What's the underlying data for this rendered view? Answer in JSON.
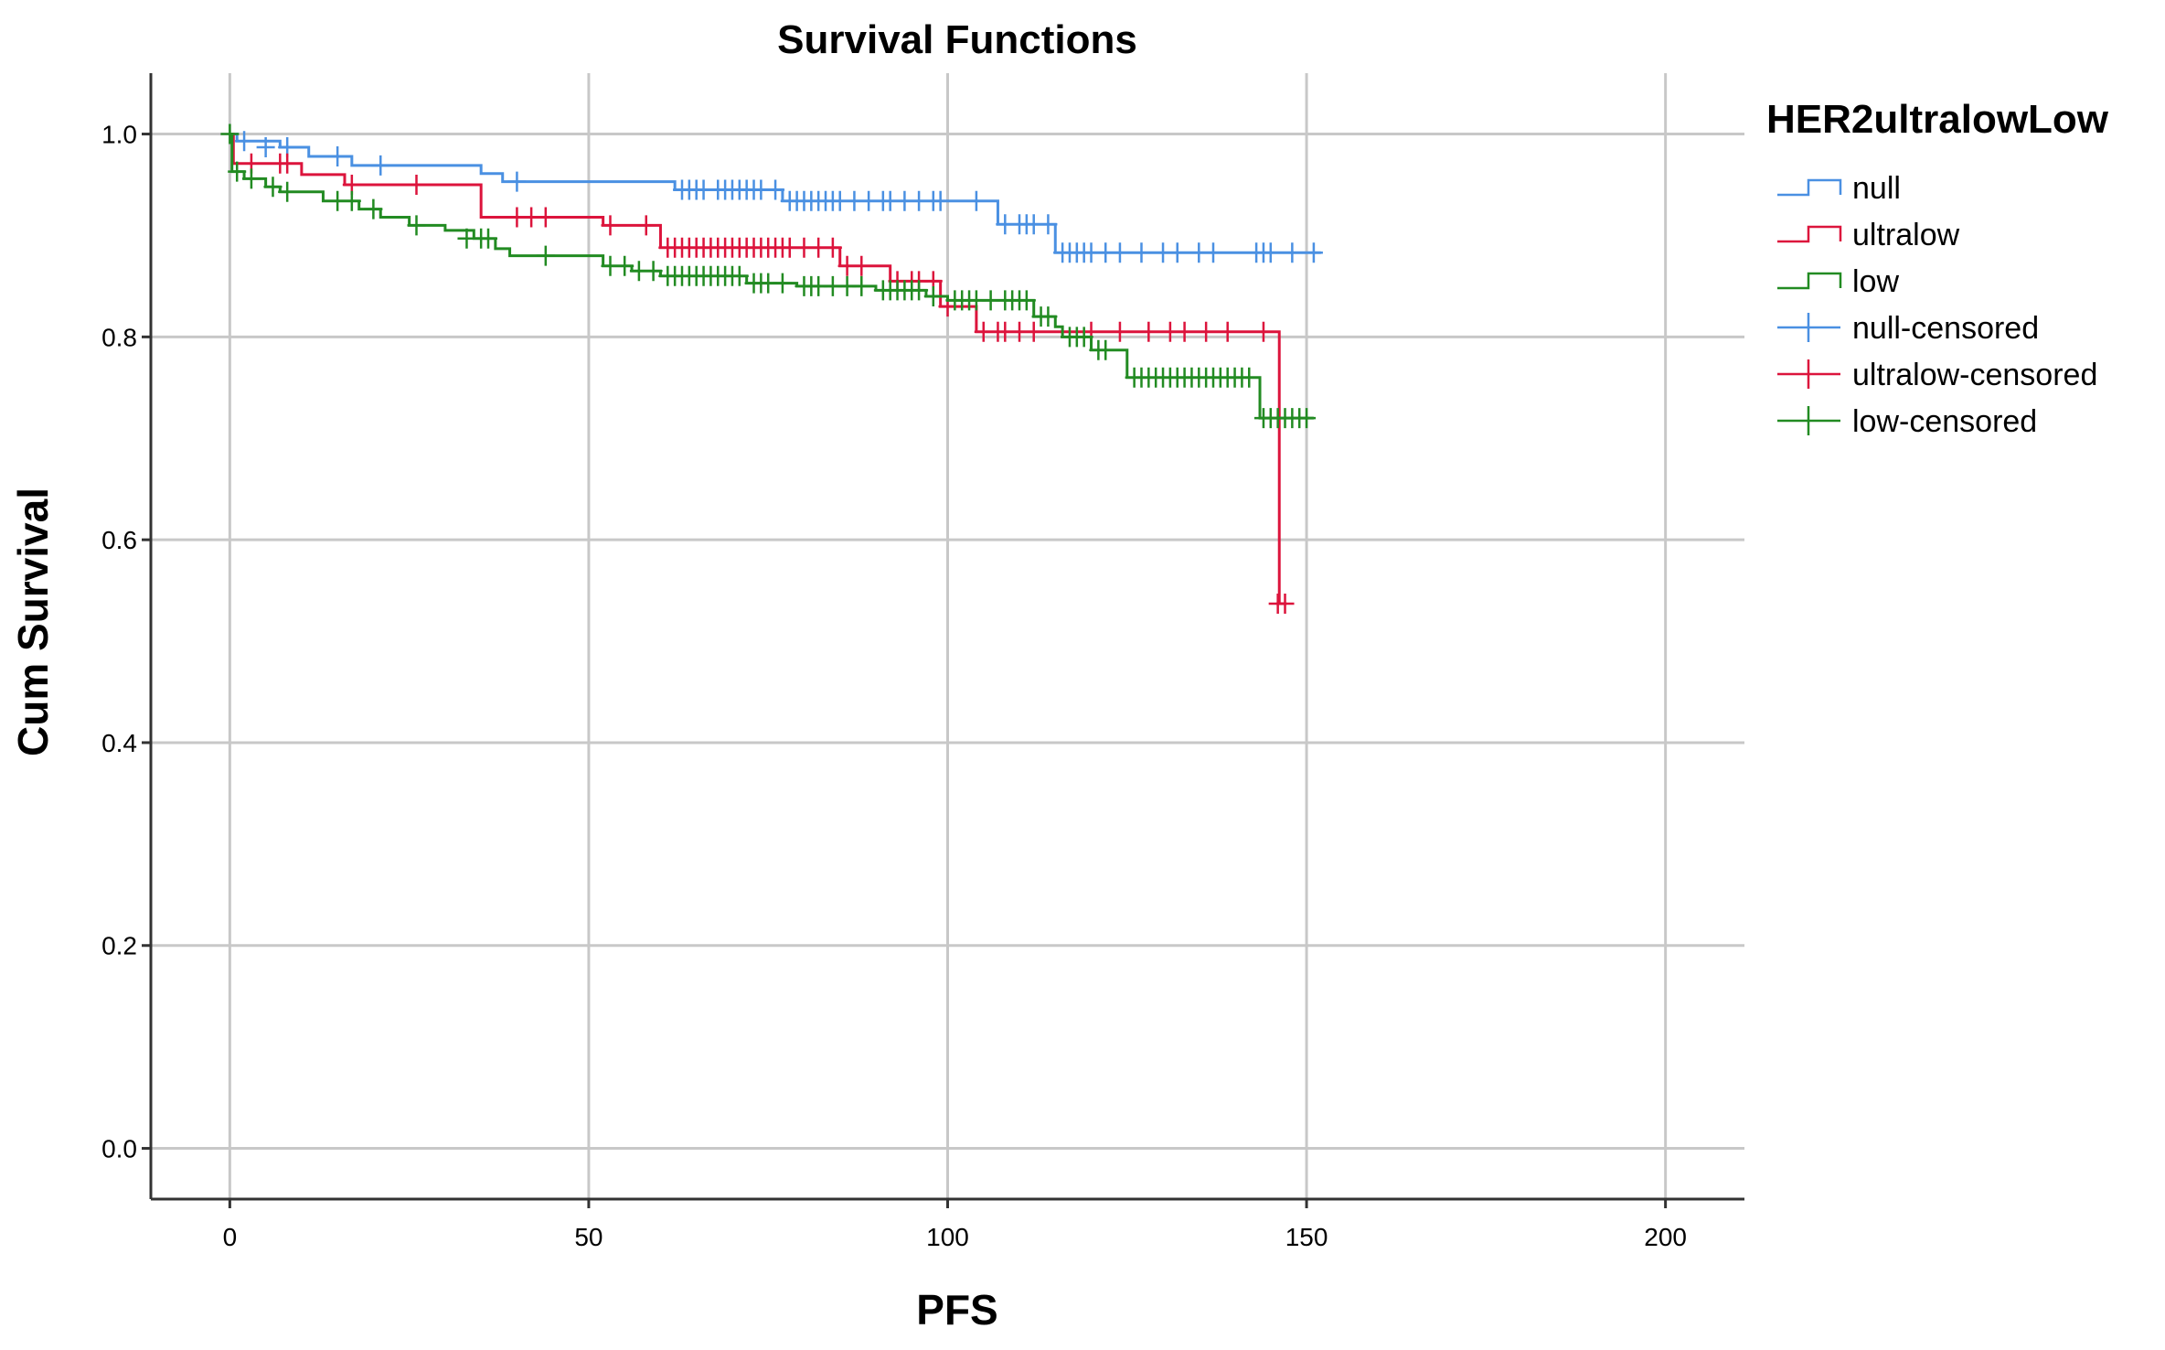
{
  "chart_data": {
    "type": "line",
    "title": "Survival Functions",
    "xlabel": "PFS",
    "ylabel": "Cum Survival",
    "xlim": [
      -11,
      211
    ],
    "ylim": [
      -0.05,
      1.06
    ],
    "xticks": [
      0,
      50,
      100,
      150,
      200
    ],
    "xtick_labels": [
      "0",
      "50",
      "100",
      "150",
      "200"
    ],
    "yticks": [
      0.0,
      0.2,
      0.4,
      0.6,
      0.8,
      1.0
    ],
    "ytick_labels": [
      "0.0",
      "0.2",
      "0.4",
      "0.6",
      "0.8",
      "1.0"
    ],
    "grid": true,
    "legend_position": "right",
    "legend_title": "HER2ultralowLow",
    "legend": [
      {
        "label": "null",
        "kind": "step",
        "color": "#4a90e2"
      },
      {
        "label": "ultralow",
        "kind": "step",
        "color": "#dc143c"
      },
      {
        "label": "low",
        "kind": "step",
        "color": "#228b22"
      },
      {
        "label": "null-censored",
        "kind": "censor",
        "color": "#4a90e2"
      },
      {
        "label": "ultralow-censored",
        "kind": "censor",
        "color": "#dc143c"
      },
      {
        "label": "low-censored",
        "kind": "censor",
        "color": "#228b22"
      }
    ],
    "series": [
      {
        "name": "null",
        "color": "#4a90e2",
        "steps": [
          [
            0,
            1.0
          ],
          [
            1,
            0.993
          ],
          [
            7,
            0.987
          ],
          [
            11,
            0.978
          ],
          [
            17,
            0.969
          ],
          [
            35,
            0.961
          ],
          [
            38,
            0.953
          ],
          [
            62,
            0.945
          ],
          [
            77,
            0.934
          ],
          [
            107,
            0.911
          ],
          [
            115,
            0.883
          ],
          [
            152,
            0.883
          ]
        ],
        "censored": [
          [
            2,
            0.993
          ],
          [
            5,
            0.987
          ],
          [
            8,
            0.987
          ],
          [
            15,
            0.978
          ],
          [
            21,
            0.969
          ],
          [
            40,
            0.953
          ],
          [
            63,
            0.945
          ],
          [
            64,
            0.945
          ],
          [
            65,
            0.945
          ],
          [
            66,
            0.945
          ],
          [
            68,
            0.945
          ],
          [
            69,
            0.945
          ],
          [
            70,
            0.945
          ],
          [
            71,
            0.945
          ],
          [
            72,
            0.945
          ],
          [
            73,
            0.945
          ],
          [
            74,
            0.945
          ],
          [
            76,
            0.945
          ],
          [
            78,
            0.934
          ],
          [
            79,
            0.934
          ],
          [
            80,
            0.934
          ],
          [
            81,
            0.934
          ],
          [
            82,
            0.934
          ],
          [
            83,
            0.934
          ],
          [
            84,
            0.934
          ],
          [
            85,
            0.934
          ],
          [
            87,
            0.934
          ],
          [
            89,
            0.934
          ],
          [
            91,
            0.934
          ],
          [
            92,
            0.934
          ],
          [
            94,
            0.934
          ],
          [
            96,
            0.934
          ],
          [
            98,
            0.934
          ],
          [
            99,
            0.934
          ],
          [
            104,
            0.934
          ],
          [
            108,
            0.911
          ],
          [
            110,
            0.911
          ],
          [
            111,
            0.911
          ],
          [
            112,
            0.911
          ],
          [
            114,
            0.911
          ],
          [
            116,
            0.883
          ],
          [
            117,
            0.883
          ],
          [
            118,
            0.883
          ],
          [
            119,
            0.883
          ],
          [
            120,
            0.883
          ],
          [
            122,
            0.883
          ],
          [
            124,
            0.883
          ],
          [
            127,
            0.883
          ],
          [
            130,
            0.883
          ],
          [
            132,
            0.883
          ],
          [
            135,
            0.883
          ],
          [
            137,
            0.883
          ],
          [
            143,
            0.883
          ],
          [
            144,
            0.883
          ],
          [
            145,
            0.883
          ],
          [
            148,
            0.883
          ],
          [
            151,
            0.883
          ]
        ]
      },
      {
        "name": "ultralow",
        "color": "#dc143c",
        "steps": [
          [
            0,
            1.0
          ],
          [
            0.5,
            0.971
          ],
          [
            10,
            0.96
          ],
          [
            16,
            0.95
          ],
          [
            35,
            0.918
          ],
          [
            52,
            0.91
          ],
          [
            60,
            0.888
          ],
          [
            81,
            0.888
          ],
          [
            85,
            0.87
          ],
          [
            92,
            0.855
          ],
          [
            99,
            0.83
          ],
          [
            104,
            0.805
          ],
          [
            117,
            0.805
          ],
          [
            146,
            0.805
          ],
          [
            146.2,
            0.537
          ],
          [
            147,
            0.537
          ]
        ],
        "censored": [
          [
            3,
            0.971
          ],
          [
            7,
            0.971
          ],
          [
            8,
            0.971
          ],
          [
            17,
            0.95
          ],
          [
            26,
            0.95
          ],
          [
            40,
            0.918
          ],
          [
            42,
            0.918
          ],
          [
            44,
            0.918
          ],
          [
            53,
            0.91
          ],
          [
            58,
            0.91
          ],
          [
            61,
            0.888
          ],
          [
            62,
            0.888
          ],
          [
            63,
            0.888
          ],
          [
            64,
            0.888
          ],
          [
            65,
            0.888
          ],
          [
            66,
            0.888
          ],
          [
            67,
            0.888
          ],
          [
            68,
            0.888
          ],
          [
            69,
            0.888
          ],
          [
            70,
            0.888
          ],
          [
            71,
            0.888
          ],
          [
            72,
            0.888
          ],
          [
            73,
            0.888
          ],
          [
            74,
            0.888
          ],
          [
            75,
            0.888
          ],
          [
            76,
            0.888
          ],
          [
            77,
            0.888
          ],
          [
            78,
            0.888
          ],
          [
            80,
            0.888
          ],
          [
            82,
            0.888
          ],
          [
            84,
            0.888
          ],
          [
            86,
            0.87
          ],
          [
            88,
            0.87
          ],
          [
            93,
            0.855
          ],
          [
            95,
            0.855
          ],
          [
            96,
            0.855
          ],
          [
            98,
            0.855
          ],
          [
            100,
            0.83
          ],
          [
            105,
            0.805
          ],
          [
            107,
            0.805
          ],
          [
            108,
            0.805
          ],
          [
            110,
            0.805
          ],
          [
            112,
            0.805
          ],
          [
            120,
            0.805
          ],
          [
            124,
            0.805
          ],
          [
            128,
            0.805
          ],
          [
            131,
            0.805
          ],
          [
            133,
            0.805
          ],
          [
            136,
            0.805
          ],
          [
            139,
            0.805
          ],
          [
            144,
            0.805
          ],
          [
            146,
            0.537
          ],
          [
            147,
            0.537
          ]
        ]
      },
      {
        "name": "low",
        "color": "#228b22",
        "steps": [
          [
            0,
            1.0
          ],
          [
            0.3,
            0.963
          ],
          [
            2,
            0.956
          ],
          [
            5,
            0.948
          ],
          [
            7,
            0.943
          ],
          [
            13,
            0.934
          ],
          [
            18,
            0.926
          ],
          [
            21,
            0.918
          ],
          [
            25,
            0.91
          ],
          [
            30,
            0.905
          ],
          [
            34,
            0.897
          ],
          [
            37,
            0.887
          ],
          [
            39,
            0.88
          ],
          [
            52,
            0.87
          ],
          [
            56,
            0.865
          ],
          [
            60,
            0.86
          ],
          [
            72,
            0.853
          ],
          [
            79,
            0.85
          ],
          [
            90,
            0.846
          ],
          [
            97,
            0.84
          ],
          [
            100,
            0.836
          ],
          [
            112,
            0.82
          ],
          [
            115,
            0.81
          ],
          [
            116,
            0.8
          ],
          [
            120,
            0.787
          ],
          [
            125,
            0.76
          ],
          [
            143,
            0.76
          ],
          [
            143.5,
            0.72
          ],
          [
            151,
            0.72
          ]
        ],
        "censored": [
          [
            0,
            1.0
          ],
          [
            1,
            0.963
          ],
          [
            3,
            0.956
          ],
          [
            6,
            0.948
          ],
          [
            8,
            0.943
          ],
          [
            15,
            0.934
          ],
          [
            17,
            0.934
          ],
          [
            20,
            0.926
          ],
          [
            26,
            0.91
          ],
          [
            33,
            0.897
          ],
          [
            35,
            0.897
          ],
          [
            36,
            0.897
          ],
          [
            44,
            0.88
          ],
          [
            53,
            0.87
          ],
          [
            55,
            0.87
          ],
          [
            57,
            0.865
          ],
          [
            59,
            0.865
          ],
          [
            61,
            0.86
          ],
          [
            62,
            0.86
          ],
          [
            63,
            0.86
          ],
          [
            64,
            0.86
          ],
          [
            65,
            0.86
          ],
          [
            66,
            0.86
          ],
          [
            67,
            0.86
          ],
          [
            68,
            0.86
          ],
          [
            69,
            0.86
          ],
          [
            70,
            0.86
          ],
          [
            71,
            0.86
          ],
          [
            73,
            0.853
          ],
          [
            74,
            0.853
          ],
          [
            75,
            0.853
          ],
          [
            77,
            0.853
          ],
          [
            80,
            0.85
          ],
          [
            81,
            0.85
          ],
          [
            82,
            0.85
          ],
          [
            84,
            0.85
          ],
          [
            86,
            0.85
          ],
          [
            88,
            0.85
          ],
          [
            91,
            0.846
          ],
          [
            92,
            0.846
          ],
          [
            93,
            0.846
          ],
          [
            94,
            0.846
          ],
          [
            95,
            0.846
          ],
          [
            96,
            0.846
          ],
          [
            98,
            0.84
          ],
          [
            101,
            0.836
          ],
          [
            102,
            0.836
          ],
          [
            103,
            0.836
          ],
          [
            104,
            0.836
          ],
          [
            106,
            0.836
          ],
          [
            108,
            0.836
          ],
          [
            109,
            0.836
          ],
          [
            110,
            0.836
          ],
          [
            111,
            0.836
          ],
          [
            113,
            0.82
          ],
          [
            114,
            0.82
          ],
          [
            117,
            0.8
          ],
          [
            118,
            0.8
          ],
          [
            119,
            0.8
          ],
          [
            121,
            0.787
          ],
          [
            122,
            0.787
          ],
          [
            126,
            0.76
          ],
          [
            127,
            0.76
          ],
          [
            128,
            0.76
          ],
          [
            129,
            0.76
          ],
          [
            130,
            0.76
          ],
          [
            131,
            0.76
          ],
          [
            132,
            0.76
          ],
          [
            133,
            0.76
          ],
          [
            134,
            0.76
          ],
          [
            135,
            0.76
          ],
          [
            136,
            0.76
          ],
          [
            137,
            0.76
          ],
          [
            138,
            0.76
          ],
          [
            139,
            0.76
          ],
          [
            140,
            0.76
          ],
          [
            141,
            0.76
          ],
          [
            142,
            0.76
          ],
          [
            144,
            0.72
          ],
          [
            145,
            0.72
          ],
          [
            146,
            0.72
          ],
          [
            147,
            0.72
          ],
          [
            148,
            0.72
          ],
          [
            149,
            0.72
          ],
          [
            150,
            0.72
          ]
        ]
      }
    ]
  }
}
